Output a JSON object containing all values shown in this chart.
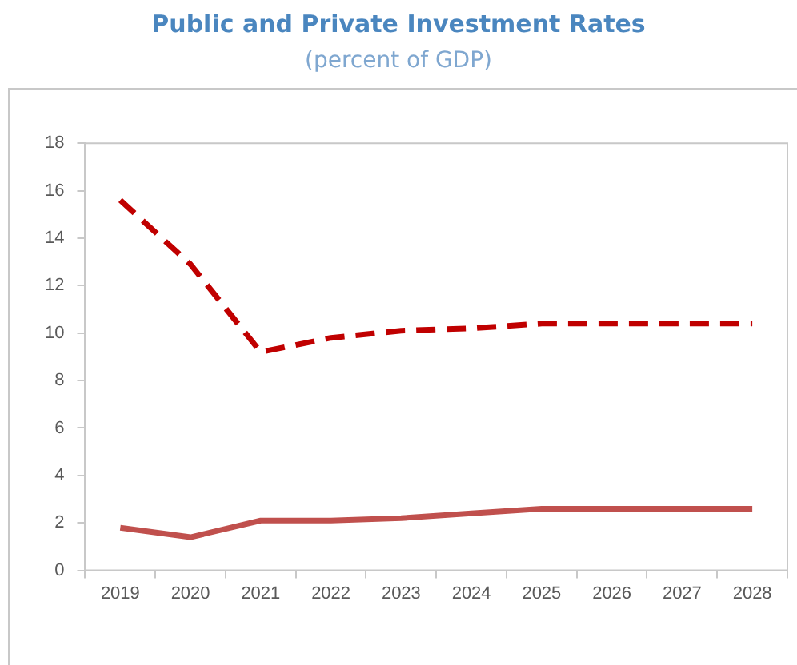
{
  "chart_data": {
    "type": "line",
    "title": "Public and Private Investment Rates",
    "subtitle": "(percent of GDP)",
    "categories": [
      "2019",
      "2020",
      "2021",
      "2022",
      "2023",
      "2024",
      "2025",
      "2026",
      "2027",
      "2028"
    ],
    "series": [
      {
        "color": "#c00000",
        "line_style": "dashed",
        "values": [
          15.6,
          12.9,
          9.2,
          9.8,
          10.1,
          10.2,
          10.4,
          10.4,
          10.4,
          10.4
        ]
      },
      {
        "color": "#c0504d",
        "line_style": "solid",
        "values": [
          1.8,
          1.4,
          2.1,
          2.1,
          2.2,
          2.4,
          2.6,
          2.6,
          2.6,
          2.6
        ]
      }
    ],
    "ylim": [
      0,
      18
    ],
    "yticks": [
      0,
      2,
      4,
      6,
      8,
      10,
      12,
      14,
      16,
      18
    ],
    "grid": false,
    "legend": false,
    "marker": "none"
  }
}
